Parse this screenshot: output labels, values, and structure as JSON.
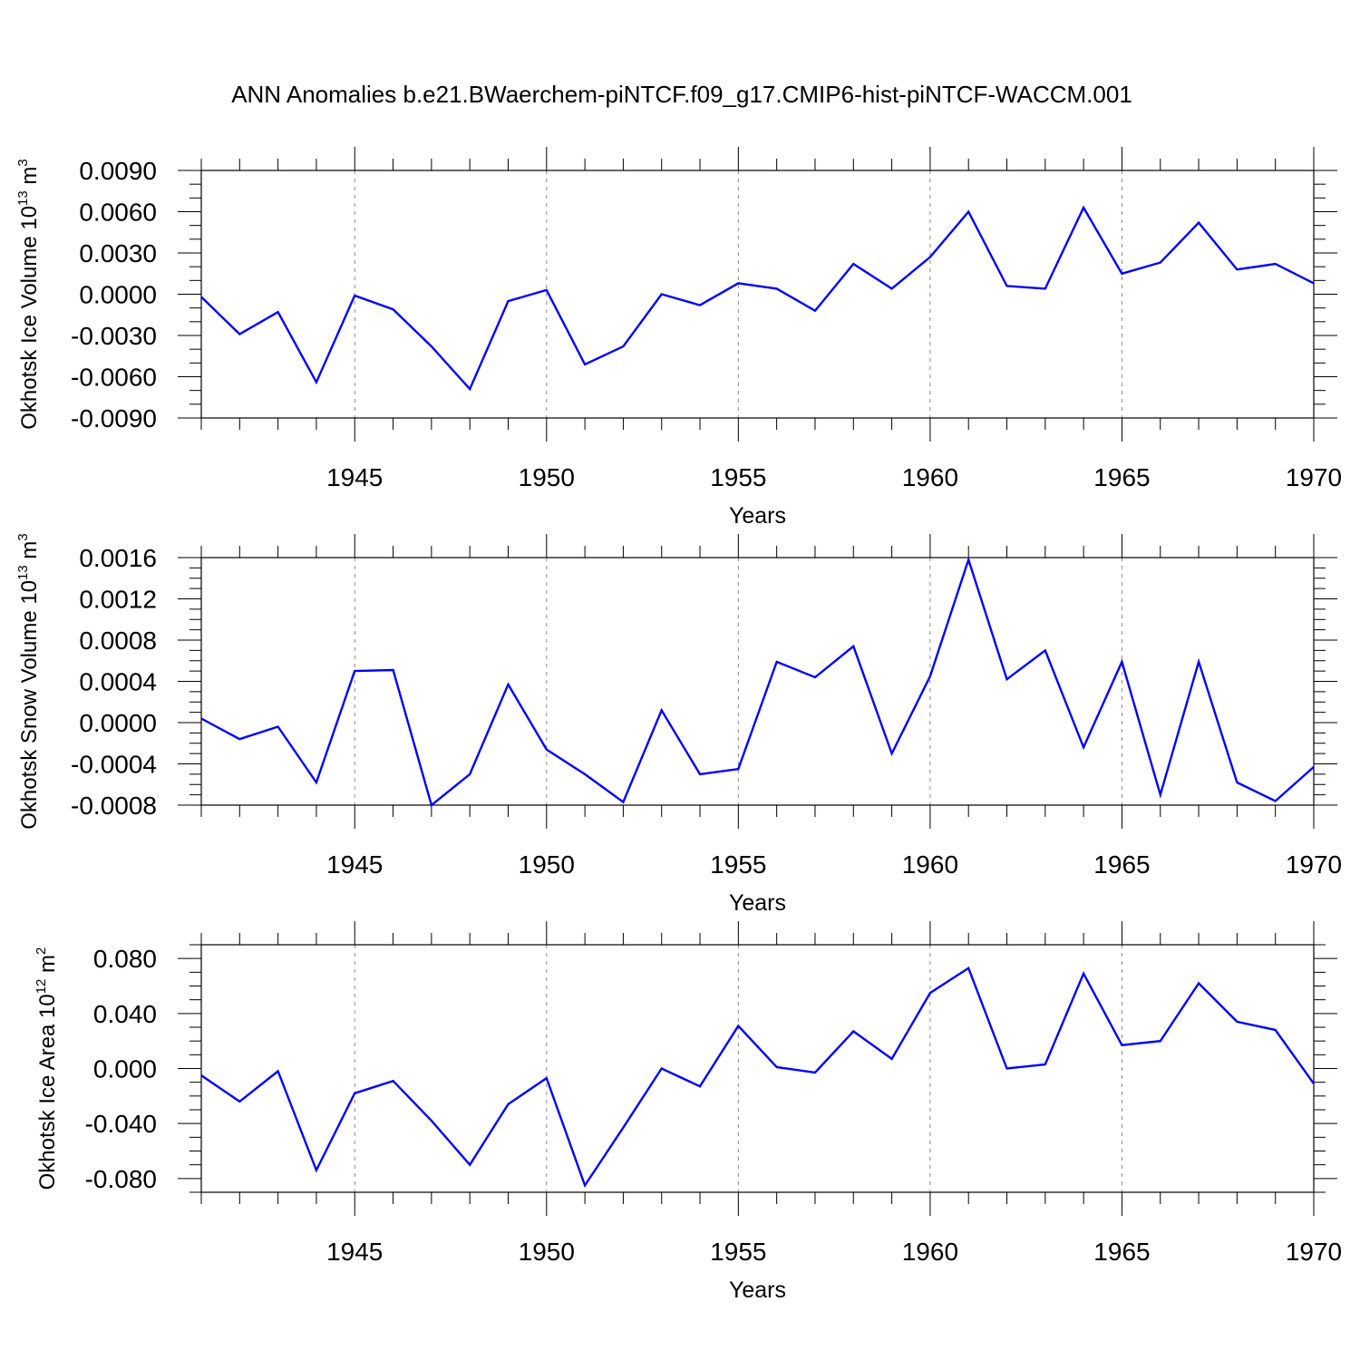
{
  "figure_title": "ANN Anomalies b.e21.BWaerchem-piNTCF.f09_g17.CMIP6-hist-piNTCF-WACCM.001",
  "chart_data": [
    {
      "type": "line",
      "ylabel": "Okhotsk Ice Volume 10",
      "ylabel_exp": "13",
      "ylabel_unit": " m",
      "ylabel_unit_exp": "3",
      "xlabel": "Years",
      "xlim": [
        1941,
        1970
      ],
      "ylim": [
        -0.009,
        0.009
      ],
      "yticks": [
        -0.009,
        -0.006,
        -0.003,
        0.0,
        0.003,
        0.006,
        0.009
      ],
      "ytick_labels": [
        "-0.0090",
        "-0.0060",
        "-0.0030",
        "0.0000",
        "0.0030",
        "0.0060",
        "0.0090"
      ],
      "yminor_step": 0.001,
      "xticks": [
        1945,
        1950,
        1955,
        1960,
        1965,
        1970
      ],
      "xtick_labels": [
        "1945",
        "1950",
        "1955",
        "1960",
        "1965",
        "1970"
      ],
      "grid": "dashed vertical at major x ticks",
      "series": [
        {
          "name": "Okhotsk Ice Volume",
          "color": "#0000ff",
          "x": [
            1941,
            1942,
            1943,
            1944,
            1945,
            1946,
            1947,
            1948,
            1949,
            1950,
            1951,
            1952,
            1953,
            1954,
            1955,
            1956,
            1957,
            1958,
            1959,
            1960,
            1961,
            1962,
            1963,
            1964,
            1965,
            1966,
            1967,
            1968,
            1969,
            1970
          ],
          "y": [
            -0.0002,
            -0.0029,
            -0.0013,
            -0.0064,
            -0.0001,
            -0.0011,
            -0.0038,
            -0.0069,
            -0.0005,
            0.0003,
            -0.0051,
            -0.0038,
            0.0,
            -0.0008,
            0.0008,
            0.0004,
            -0.0012,
            0.0022,
            0.0004,
            0.0027,
            0.006,
            0.0006,
            0.0004,
            0.0063,
            0.0015,
            0.0023,
            0.0052,
            0.0018,
            0.0022,
            0.0008
          ]
        }
      ]
    },
    {
      "type": "line",
      "ylabel": "Okhotsk Snow Volume 10",
      "ylabel_exp": "13",
      "ylabel_unit": " m",
      "ylabel_unit_exp": "3",
      "xlabel": "Years",
      "xlim": [
        1941,
        1970
      ],
      "ylim": [
        -0.0008,
        0.0016
      ],
      "yticks": [
        -0.0008,
        -0.0004,
        0.0,
        0.0004,
        0.0008,
        0.0012,
        0.0016
      ],
      "ytick_labels": [
        "-0.0008",
        "-0.0004",
        "0.0000",
        "0.0004",
        "0.0008",
        "0.0012",
        "0.0016"
      ],
      "yminor_step": 0.0001,
      "xticks": [
        1945,
        1950,
        1955,
        1960,
        1965,
        1970
      ],
      "xtick_labels": [
        "1945",
        "1950",
        "1955",
        "1960",
        "1965",
        "1970"
      ],
      "grid": "dashed vertical at major x ticks",
      "series": [
        {
          "name": "Okhotsk Snow Volume",
          "color": "#0000ff",
          "x": [
            1941,
            1942,
            1943,
            1944,
            1945,
            1946,
            1947,
            1948,
            1949,
            1950,
            1951,
            1952,
            1953,
            1954,
            1955,
            1956,
            1957,
            1958,
            1959,
            1960,
            1961,
            1962,
            1963,
            1964,
            1965,
            1966,
            1967,
            1968,
            1969,
            1970
          ],
          "y": [
            4e-05,
            -0.00016,
            -4e-05,
            -0.00058,
            0.0005,
            0.00051,
            -0.0008,
            -0.0005,
            0.00037,
            -0.00026,
            -0.0005,
            -0.00077,
            0.00012,
            -0.0005,
            -0.00045,
            0.00059,
            0.00044,
            0.00074,
            -0.0003,
            0.00045,
            0.00158,
            0.00042,
            0.0007,
            -0.00024,
            0.00059,
            -0.0007,
            0.00059,
            -0.00058,
            -0.00076,
            -0.00043
          ]
        }
      ]
    },
    {
      "type": "line",
      "ylabel": "Okhotsk Ice Area 10",
      "ylabel_exp": "12",
      "ylabel_unit": " m",
      "ylabel_unit_exp": "2",
      "xlabel": "Years",
      "xlim": [
        1941,
        1970
      ],
      "ylim": [
        -0.09,
        0.09
      ],
      "yticks": [
        -0.08,
        -0.04,
        0.0,
        0.04,
        0.08
      ],
      "ytick_labels": [
        "-0.080",
        "-0.040",
        "0.000",
        "0.040",
        "0.080"
      ],
      "yminor_step": 0.01,
      "xticks": [
        1945,
        1950,
        1955,
        1960,
        1965,
        1970
      ],
      "xtick_labels": [
        "1945",
        "1950",
        "1955",
        "1960",
        "1965",
        "1970"
      ],
      "grid": "dashed vertical at major x ticks",
      "series": [
        {
          "name": "Okhotsk Ice Area",
          "color": "#0000ff",
          "x": [
            1941,
            1942,
            1943,
            1944,
            1945,
            1946,
            1947,
            1948,
            1949,
            1950,
            1951,
            1952,
            1953,
            1954,
            1955,
            1956,
            1957,
            1958,
            1959,
            1960,
            1961,
            1962,
            1963,
            1964,
            1965,
            1966,
            1967,
            1968,
            1969,
            1970
          ],
          "y": [
            -0.005,
            -0.024,
            -0.002,
            -0.074,
            -0.018,
            -0.009,
            -0.038,
            -0.07,
            -0.026,
            -0.007,
            -0.085,
            -0.043,
            0.0,
            -0.013,
            0.031,
            0.001,
            -0.003,
            0.027,
            0.007,
            0.055,
            0.073,
            0.0,
            0.003,
            0.069,
            0.017,
            0.02,
            0.062,
            0.034,
            0.028,
            -0.011
          ]
        }
      ]
    }
  ]
}
